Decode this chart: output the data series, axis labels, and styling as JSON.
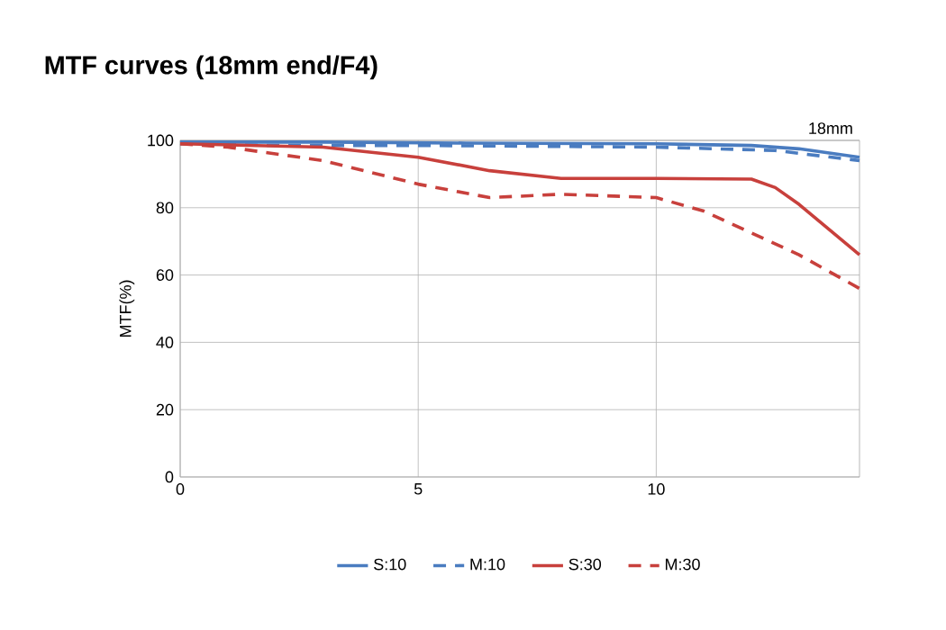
{
  "chart_data": {
    "type": "line",
    "title": "MTF curves (18mm end/F4)",
    "ylabel": "MTF(%)",
    "annotations": [
      "18mm"
    ],
    "xlim": [
      0,
      14.27
    ],
    "xticks": [
      0,
      5,
      10
    ],
    "ylim": [
      0,
      100
    ],
    "yticks": [
      0,
      20,
      40,
      60,
      80,
      100
    ],
    "grid": true,
    "legend": "bottom",
    "marker": "none",
    "series": [
      {
        "name": "S:10",
        "color": "#4a7cc0",
        "line_style": "solid",
        "x": [
          0,
          3,
          6,
          10,
          12,
          13,
          14.27
        ],
        "values": [
          99.5,
          99.5,
          99.2,
          99,
          98.5,
          97.5,
          95
        ]
      },
      {
        "name": "M:10",
        "color": "#4a7cc0",
        "line_style": "dashed",
        "x": [
          0,
          2,
          5,
          10,
          12.5,
          14.27
        ],
        "values": [
          99,
          98.5,
          98.5,
          98,
          97,
          94
        ]
      },
      {
        "name": "S:30",
        "color": "#c8403c",
        "line_style": "solid",
        "x": [
          0,
          3,
          5,
          6.5,
          8,
          10,
          12,
          12.5,
          13,
          14.27
        ],
        "values": [
          99,
          98,
          95,
          91,
          88.7,
          88.7,
          88.5,
          86,
          81,
          66
        ]
      },
      {
        "name": "M:30",
        "color": "#c8403c",
        "line_style": "dashed",
        "x": [
          0,
          1,
          3,
          5,
          6.5,
          8,
          10,
          11,
          13,
          14.27
        ],
        "values": [
          99,
          98,
          94,
          87,
          83,
          84,
          83,
          79,
          66,
          56
        ]
      }
    ]
  }
}
